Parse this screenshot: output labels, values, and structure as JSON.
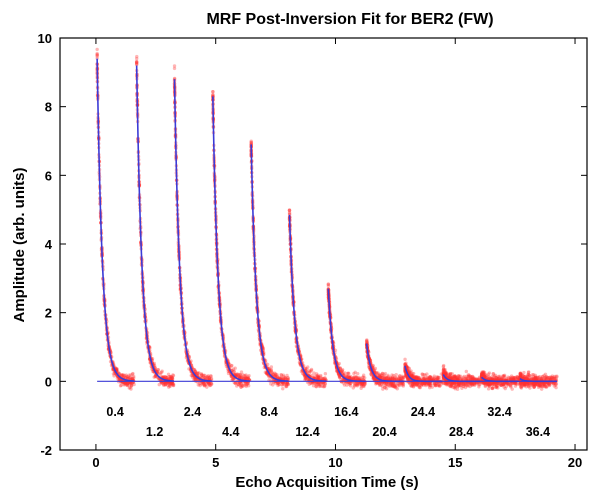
{
  "chart_data": {
    "type": "scatter",
    "title": "MRF Post-Inversion Fit for BER2 (FW)",
    "xlabel": "Echo Acquisition Time (s)",
    "ylabel": "Amplitude (arb. units)",
    "xlim": [
      -1.5,
      20.5
    ],
    "ylim": [
      -2,
      10
    ],
    "xticks": [
      0,
      5,
      10,
      15,
      20
    ],
    "yticks": [
      -2,
      0,
      2,
      4,
      6,
      8,
      10
    ],
    "grid": false,
    "colors": {
      "data": "#ff3030",
      "fit": "#3b3bd6",
      "axes": "#000000"
    },
    "series": [
      {
        "role": "measured",
        "style": "scatter"
      },
      {
        "role": "fit",
        "style": "line"
      }
    ],
    "trains": [
      {
        "label": "0.4",
        "start": 0.05,
        "peak": 9.4,
        "decay": 0.22
      },
      {
        "label": "1.2",
        "start": 1.7,
        "peak": 9.2,
        "decay": 0.22
      },
      {
        "label": "2.4",
        "start": 3.28,
        "peak": 8.8,
        "decay": 0.22
      },
      {
        "label": "4.4",
        "start": 4.88,
        "peak": 8.3,
        "decay": 0.22
      },
      {
        "label": "8.4",
        "start": 6.48,
        "peak": 6.9,
        "decay": 0.22
      },
      {
        "label": "12.4",
        "start": 8.08,
        "peak": 4.85,
        "decay": 0.22
      },
      {
        "label": "16.4",
        "start": 9.7,
        "peak": 2.7,
        "decay": 0.2
      },
      {
        "label": "20.4",
        "start": 11.3,
        "peak": 1.1,
        "decay": 0.18
      },
      {
        "label": "24.4",
        "start": 12.9,
        "peak": 0.45,
        "decay": 0.15
      },
      {
        "label": "28.4",
        "start": 14.5,
        "peak": 0.2,
        "decay": 0.15
      },
      {
        "label": "32.4",
        "start": 16.1,
        "peak": 0.12,
        "decay": 0.15
      },
      {
        "label": "36.4",
        "start": 17.7,
        "peak": 0.08,
        "decay": 0.15
      }
    ],
    "train_duration": 1.55,
    "baseline": 0.0
  }
}
